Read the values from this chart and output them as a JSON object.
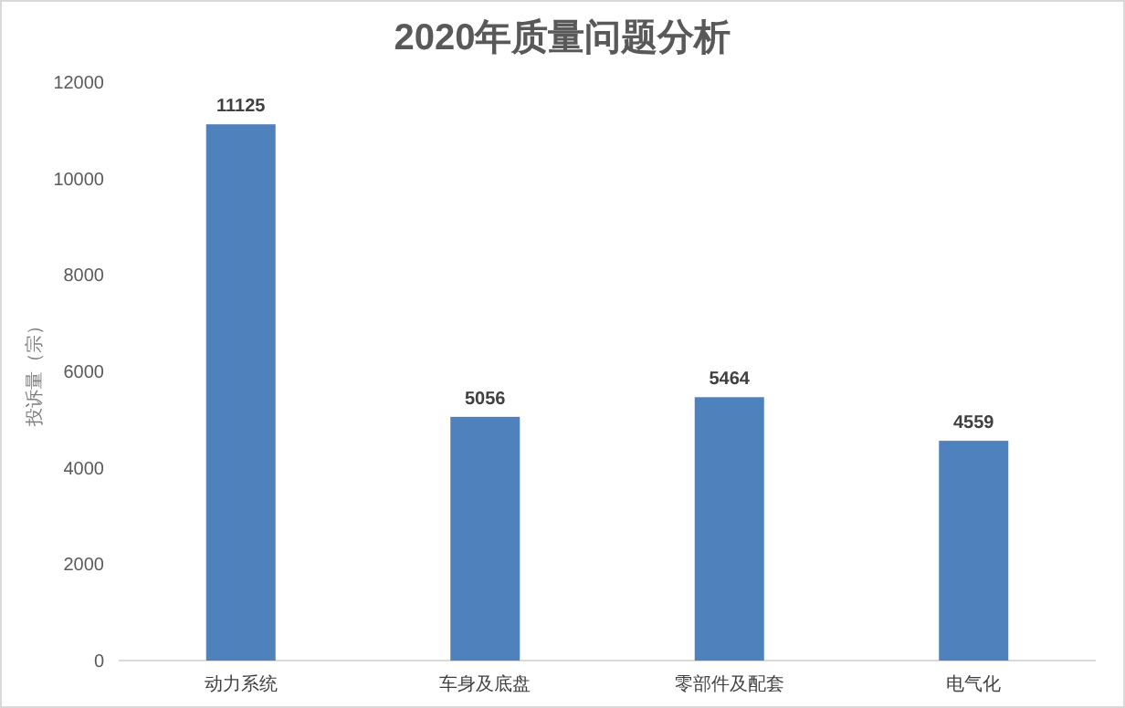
{
  "chart_data": {
    "type": "bar",
    "title": "2020年质量问题分析",
    "ylabel": "投诉量（宗）",
    "categories": [
      "动力系统",
      "车身及底盘",
      "零部件及配套",
      "电气化"
    ],
    "values": [
      11125,
      5056,
      5464,
      4559
    ],
    "color": "#4f81bd",
    "ylim": [
      0,
      12000
    ],
    "yticks": [
      0,
      2000,
      4000,
      6000,
      8000,
      10000,
      12000
    ],
    "data_labels": true,
    "grid": false
  }
}
